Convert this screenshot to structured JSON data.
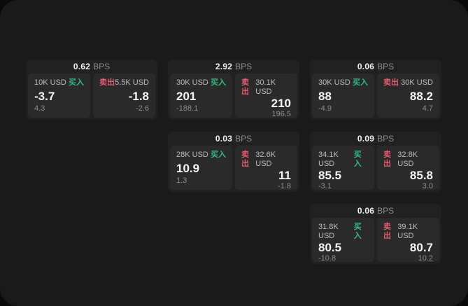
{
  "labels": {
    "unit": "BPS",
    "buy": "买入",
    "sell": "卖出"
  },
  "colors": {
    "buy": "#2ebd85",
    "sell": "#e25b70",
    "panel_bg": "#1a1a1a",
    "card_bg": "#212121",
    "subpanel_bg": "#2a2a2a"
  },
  "cards": [
    {
      "bps": "0.62",
      "grid": {
        "col": 1,
        "row": 1
      },
      "buy": {
        "size": "10K USD",
        "price": "-3.7",
        "change": "4.3"
      },
      "sell": {
        "size": "5.5K USD",
        "price": "-1.8",
        "change": "-2.6"
      }
    },
    {
      "bps": "2.92",
      "grid": {
        "col": 2,
        "row": 1
      },
      "buy": {
        "size": "30K USD",
        "price": "201",
        "change": "-188.1"
      },
      "sell": {
        "size": "30.1K USD",
        "price": "210",
        "change": "196.5"
      }
    },
    {
      "bps": "0.06",
      "grid": {
        "col": 3,
        "row": 1
      },
      "buy": {
        "size": "30K USD",
        "price": "88",
        "change": "-4.9"
      },
      "sell": {
        "size": "30K USD",
        "price": "88.2",
        "change": "4.7"
      }
    },
    {
      "bps": "0.03",
      "grid": {
        "col": 2,
        "row": 2
      },
      "buy": {
        "size": "28K USD",
        "price": "10.9",
        "change": "1.3"
      },
      "sell": {
        "size": "32.6K USD",
        "price": "11",
        "change": "-1.8"
      }
    },
    {
      "bps": "0.09",
      "grid": {
        "col": 3,
        "row": 2
      },
      "buy": {
        "size": "34.1K USD",
        "price": "85.5",
        "change": "-3.1"
      },
      "sell": {
        "size": "32.8K USD",
        "price": "85.8",
        "change": "3.0"
      }
    },
    {
      "bps": "0.06",
      "grid": {
        "col": 3,
        "row": 3
      },
      "buy": {
        "size": "31.8K USD",
        "price": "80.5",
        "change": "-10.8"
      },
      "sell": {
        "size": "39.1K USD",
        "price": "80.7",
        "change": "10.2"
      }
    }
  ]
}
